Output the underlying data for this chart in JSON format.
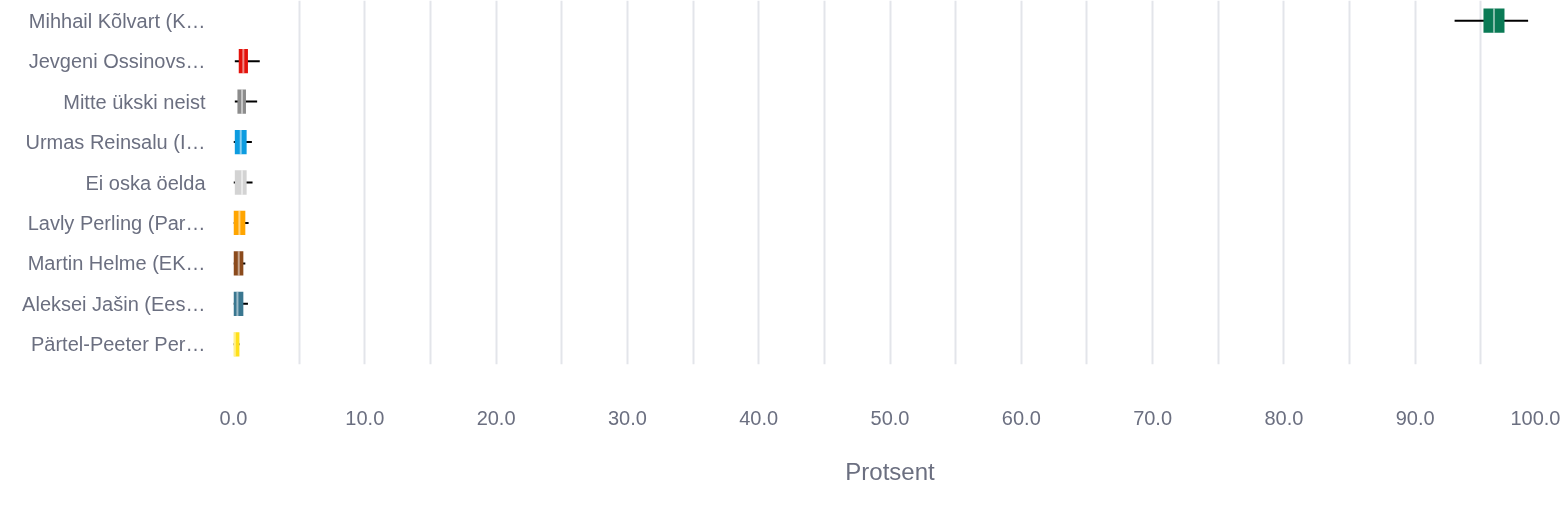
{
  "chart_data": {
    "type": "box",
    "orientation": "horizontal",
    "xlabel": "Protsent",
    "categories": [
      "Mihhail Kõlvart (K…",
      "Jevgeni Ossinovs…",
      "Mitte ükski neist",
      "Urmas Reinsalu (I…",
      "Ei oska öelda",
      "Lavly Perling (Par…",
      "Martin Helme (EK…",
      "Aleksei Jašin (Ees…",
      "Pärtel-Peeter Per…"
    ],
    "colors": [
      "#0a7a55",
      "#e3120b",
      "#8c8c8c",
      "#0d9ce0",
      "#d3d3d3",
      "#ffa500",
      "#8b4a1c",
      "#3a7790",
      "#ffe01a"
    ],
    "boxes": [
      {
        "low": 93.0,
        "q1": 95.2,
        "median": 96.0,
        "q3": 96.8,
        "high": 98.6
      },
      {
        "low": 0.1,
        "q1": 0.4,
        "median": 0.75,
        "q3": 1.1,
        "high": 2.0
      },
      {
        "low": 0.1,
        "q1": 0.3,
        "median": 0.65,
        "q3": 0.95,
        "high": 1.8
      },
      {
        "low": 0.0,
        "q1": 0.1,
        "median": 0.55,
        "q3": 1.0,
        "high": 1.4
      },
      {
        "low": 0.0,
        "q1": 0.1,
        "median": 0.65,
        "q3": 1.0,
        "high": 1.45
      },
      {
        "low": 0.0,
        "q1": 0.0,
        "median": 0.45,
        "q3": 0.9,
        "high": 1.15
      },
      {
        "low": 0.0,
        "q1": 0.0,
        "median": 0.4,
        "q3": 0.75,
        "high": 0.9
      },
      {
        "low": 0.0,
        "q1": 0.0,
        "median": 0.3,
        "q3": 0.75,
        "high": 1.1
      },
      {
        "low": 0.0,
        "q1": 0.0,
        "median": 0.1,
        "q3": 0.45,
        "high": 0.45
      }
    ],
    "xlim": [
      0,
      100
    ],
    "xticks": [
      {
        "value": 0,
        "label": "0.0"
      },
      {
        "value": 5,
        "label": null
      },
      {
        "value": 10,
        "label": "10.0"
      },
      {
        "value": 15,
        "label": null
      },
      {
        "value": 20,
        "label": "20.0"
      },
      {
        "value": 25,
        "label": null
      },
      {
        "value": 30,
        "label": "30.0"
      },
      {
        "value": 35,
        "label": null
      },
      {
        "value": 40,
        "label": "40.0"
      },
      {
        "value": 45,
        "label": null
      },
      {
        "value": 50,
        "label": "50.0"
      },
      {
        "value": 55,
        "label": null
      },
      {
        "value": 60,
        "label": "60.0"
      },
      {
        "value": 65,
        "label": null
      },
      {
        "value": 70,
        "label": "70.0"
      },
      {
        "value": 75,
        "label": null
      },
      {
        "value": 80,
        "label": "80.0"
      },
      {
        "value": 85,
        "label": null
      },
      {
        "value": 90,
        "label": "90.0"
      },
      {
        "value": 95,
        "label": null
      },
      {
        "value": 100,
        "label": "100.0"
      }
    ],
    "grid": "x"
  }
}
